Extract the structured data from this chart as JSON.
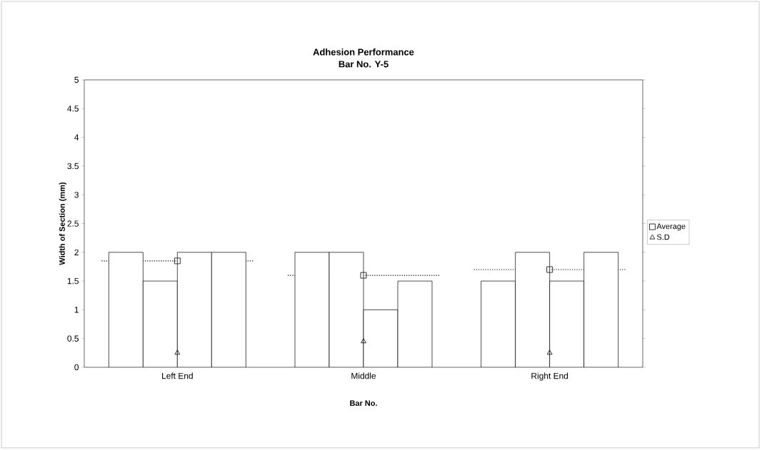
{
  "chart_data": {
    "type": "bar",
    "title": "Adhesion Performance",
    "subtitle": "Bar No. Y-5",
    "xlabel": "Bar No.",
    "ylabel": "Width of Section (mm)",
    "categories": [
      "Left End",
      "Middle",
      "Right End"
    ],
    "series": [
      {
        "color": "#ffffff",
        "values": [
          2,
          2,
          1.5
        ]
      },
      {
        "color": "#ffffff",
        "values": [
          1.5,
          2,
          2
        ]
      },
      {
        "color": "#ffffff",
        "values": [
          2,
          1,
          1.5
        ]
      },
      {
        "color": "#ffffff",
        "values": [
          2,
          1.5,
          2
        ]
      },
      {
        "type": "scatter",
        "name": "Average",
        "color": "#000000",
        "marker": "square",
        "values": [
          1.85,
          1.6,
          1.7
        ]
      },
      {
        "type": "scatter",
        "name": "S.D",
        "color": "#000000",
        "marker": "triangle",
        "values": [
          0.25,
          0.45,
          0.25
        ]
      }
    ],
    "ylim": [
      0,
      5
    ],
    "yticks": [
      0,
      0.5,
      1,
      1.5,
      2,
      2.5,
      3,
      3.5,
      4,
      4.5,
      5
    ],
    "grid": false,
    "legend": "right",
    "ref_lines": [
      {
        "axis": "y",
        "value": 1.85,
        "color": "#000000",
        "line_style": "dotted"
      },
      {
        "axis": "y",
        "value": 1.6,
        "color": "#000000",
        "line_style": "dotted"
      },
      {
        "axis": "y",
        "value": 1.7,
        "color": "#000000",
        "line_style": "dotted"
      }
    ]
  }
}
